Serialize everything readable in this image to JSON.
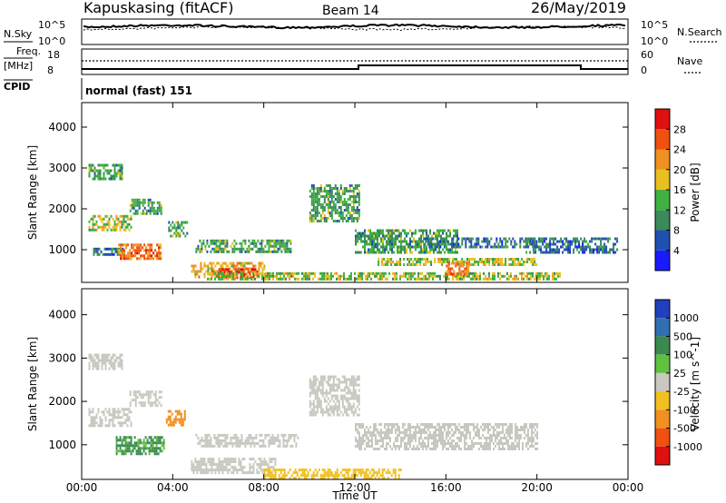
{
  "header": {
    "station": "Kapuskasing (fitACF)",
    "beam": "Beam 14",
    "date": "26/May/2019"
  },
  "top_panels": {
    "nsky_label": "N.Sky",
    "nsearch_label": "N.Search",
    "noise_ticks": [
      "10^5",
      "10^0"
    ],
    "freq_label_1": "Freq.",
    "freq_label_2": "[MHz]",
    "freq_ticks": [
      "18",
      "8"
    ],
    "nave_label": "Nave",
    "nave_ticks": [
      "60",
      "0"
    ],
    "cpid_label": "CPID",
    "cpid_value": "normal (fast) 151"
  },
  "x_axis": {
    "title": "Time UT",
    "ticks": [
      "00:00",
      "04:00",
      "08:00",
      "12:00",
      "16:00",
      "20:00",
      "00:00"
    ]
  },
  "colors": {
    "power_scale": [
      "#1a1aff",
      "#2050b0",
      "#3a8a5a",
      "#40b040",
      "#e8c020",
      "#f09020",
      "#f05010",
      "#e01010"
    ],
    "velocity_scale": [
      "#2040c0",
      "#3070b0",
      "#3a8a50",
      "#60c040",
      "#c8c8c0",
      "#f0c020",
      "#f09020",
      "#f05010",
      "#e01010"
    ]
  },
  "chart_data": [
    {
      "type": "heatmap",
      "panel": "power",
      "ylabel": "Slant Range [km]",
      "y_ticks": [
        "1000",
        "2000",
        "3000",
        "4000"
      ],
      "ylim": [
        200,
        4600
      ],
      "xlim": [
        0,
        24
      ],
      "colorbar_label": "Power [dB]",
      "colorbar_ticks": [
        "4",
        "8",
        "12",
        "16",
        "20",
        "24",
        "28"
      ],
      "patches": [
        {
          "t0": 0.3,
          "t1": 1.8,
          "r0": 2750,
          "r1": 3100,
          "value": 12
        },
        {
          "t0": 0.3,
          "t1": 2.2,
          "r0": 1450,
          "r1": 1850,
          "value": 16
        },
        {
          "t0": 2.1,
          "t1": 3.5,
          "r0": 1900,
          "r1": 2250,
          "value": 12
        },
        {
          "t0": 0.5,
          "t1": 1.8,
          "r0": 850,
          "r1": 1050,
          "value": 8
        },
        {
          "t0": 1.6,
          "t1": 3.5,
          "r0": 800,
          "r1": 1150,
          "value": 24
        },
        {
          "t0": 3.8,
          "t1": 4.6,
          "r0": 1350,
          "r1": 1700,
          "value": 12
        },
        {
          "t0": 4.8,
          "t1": 8.0,
          "r0": 350,
          "r1": 700,
          "value": 20
        },
        {
          "t0": 6.0,
          "t1": 7.8,
          "r0": 300,
          "r1": 550,
          "value": 28
        },
        {
          "t0": 5.0,
          "t1": 9.2,
          "r0": 950,
          "r1": 1250,
          "value": 12
        },
        {
          "t0": 5.5,
          "t1": 21.0,
          "r0": 250,
          "r1": 450,
          "value": 16
        },
        {
          "t0": 10.0,
          "t1": 12.2,
          "r0": 1700,
          "r1": 2600,
          "value": 12
        },
        {
          "t0": 12.0,
          "t1": 16.5,
          "r0": 900,
          "r1": 1500,
          "value": 12
        },
        {
          "t0": 13.0,
          "t1": 20.0,
          "r0": 600,
          "r1": 800,
          "value": 16
        },
        {
          "t0": 15.0,
          "t1": 20.0,
          "r0": 1050,
          "r1": 1300,
          "value": 8
        },
        {
          "t0": 16.0,
          "t1": 17.0,
          "r0": 400,
          "r1": 700,
          "value": 24
        },
        {
          "t0": 19.5,
          "t1": 23.5,
          "r0": 900,
          "r1": 1300,
          "value": 8
        }
      ]
    },
    {
      "type": "heatmap",
      "panel": "velocity",
      "ylabel": "Slant Range [km]",
      "y_ticks": [
        "1000",
        "2000",
        "3000",
        "4000"
      ],
      "ylim": [
        200,
        4600
      ],
      "xlim": [
        0,
        24
      ],
      "colorbar_label": "Velocity [m s^-1]",
      "colorbar_ticks": [
        "1000",
        "500",
        "100",
        "25",
        "-25",
        "-100",
        "-500",
        "-1000"
      ],
      "patches": [
        {
          "t0": 0.3,
          "t1": 1.8,
          "r0": 2750,
          "r1": 3100,
          "value": 0
        },
        {
          "t0": 0.3,
          "t1": 2.2,
          "r0": 1450,
          "r1": 1850,
          "value": 0
        },
        {
          "t0": 2.1,
          "t1": 3.5,
          "r0": 1900,
          "r1": 2250,
          "value": 0
        },
        {
          "t0": 1.5,
          "t1": 3.6,
          "r0": 800,
          "r1": 1200,
          "value": 60
        },
        {
          "t0": 3.7,
          "t1": 4.5,
          "r0": 1450,
          "r1": 1800,
          "value": -300
        },
        {
          "t0": 4.8,
          "t1": 8.5,
          "r0": 350,
          "r1": 700,
          "value": 0
        },
        {
          "t0": 5.0,
          "t1": 9.5,
          "r0": 950,
          "r1": 1250,
          "value": 0
        },
        {
          "t0": 10.0,
          "t1": 12.2,
          "r0": 1700,
          "r1": 2600,
          "value": 0
        },
        {
          "t0": 12.0,
          "t1": 20.0,
          "r0": 900,
          "r1": 1500,
          "value": 0
        },
        {
          "t0": 8.0,
          "t1": 14.0,
          "r0": 250,
          "r1": 450,
          "value": -60
        }
      ]
    }
  ]
}
